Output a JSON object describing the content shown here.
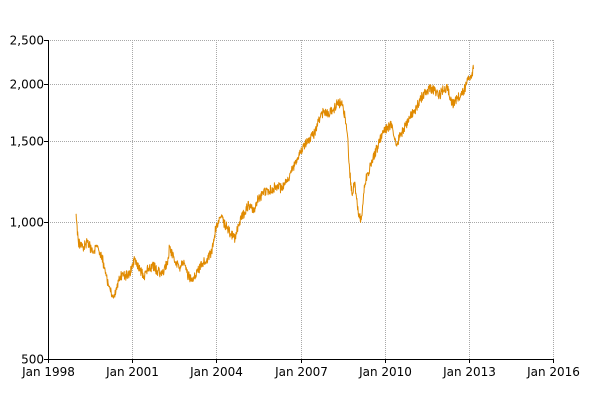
{
  "chart_data": {
    "type": "line",
    "title": "",
    "xlabel": "",
    "ylabel": "",
    "y_scale": "log",
    "ylim": [
      500,
      2500
    ],
    "xlim": [
      "1998-01",
      "2016-01"
    ],
    "grid": true,
    "legend": "none",
    "x_ticks": [
      {
        "date": "1998-01",
        "label": "Jan 1998"
      },
      {
        "date": "2001-01",
        "label": "Jan 2001"
      },
      {
        "date": "2004-01",
        "label": "Jan 2004"
      },
      {
        "date": "2007-01",
        "label": "Jan 2007"
      },
      {
        "date": "2010-01",
        "label": "Jan 2010"
      },
      {
        "date": "2013-01",
        "label": "Jan 2013"
      },
      {
        "date": "2016-01",
        "label": "Jan 2016"
      }
    ],
    "y_ticks": [
      {
        "value": 500,
        "label": "500"
      },
      {
        "value": 1000,
        "label": "1,000"
      },
      {
        "value": 1500,
        "label": "1,500"
      },
      {
        "value": 2000,
        "label": "2,000"
      },
      {
        "value": 2500,
        "label": "2,500"
      }
    ],
    "series": [
      {
        "name": "",
        "color": "#e08a00",
        "points": [
          [
            "1999-01",
            1040
          ],
          [
            "1999-02",
            900
          ],
          [
            "1999-04",
            880
          ],
          [
            "1999-06",
            900
          ],
          [
            "1999-08",
            860
          ],
          [
            "1999-10",
            880
          ],
          [
            "1999-12",
            840
          ],
          [
            "2000-02",
            760
          ],
          [
            "2000-03",
            720
          ],
          [
            "2000-05",
            680
          ],
          [
            "2000-06",
            700
          ],
          [
            "2000-08",
            760
          ],
          [
            "2000-10",
            760
          ],
          [
            "2000-12",
            770
          ],
          [
            "2001-02",
            830
          ],
          [
            "2001-04",
            790
          ],
          [
            "2001-06",
            760
          ],
          [
            "2001-08",
            790
          ],
          [
            "2001-10",
            800
          ],
          [
            "2001-12",
            780
          ],
          [
            "2002-02",
            770
          ],
          [
            "2002-04",
            810
          ],
          [
            "2002-05",
            880
          ],
          [
            "2002-07",
            820
          ],
          [
            "2002-09",
            790
          ],
          [
            "2002-11",
            810
          ],
          [
            "2003-01",
            760
          ],
          [
            "2003-03",
            740
          ],
          [
            "2003-05",
            780
          ],
          [
            "2003-07",
            810
          ],
          [
            "2003-09",
            830
          ],
          [
            "2003-11",
            860
          ],
          [
            "2004-01",
            980
          ],
          [
            "2004-03",
            1020
          ],
          [
            "2004-05",
            980
          ],
          [
            "2004-07",
            940
          ],
          [
            "2004-09",
            920
          ],
          [
            "2004-11",
            1000
          ],
          [
            "2005-01",
            1050
          ],
          [
            "2005-03",
            1090
          ],
          [
            "2005-05",
            1060
          ],
          [
            "2005-07",
            1120
          ],
          [
            "2005-09",
            1150
          ],
          [
            "2005-11",
            1170
          ],
          [
            "2006-01",
            1180
          ],
          [
            "2006-03",
            1200
          ],
          [
            "2006-05",
            1180
          ],
          [
            "2006-07",
            1220
          ],
          [
            "2006-09",
            1280
          ],
          [
            "2006-11",
            1350
          ],
          [
            "2007-01",
            1420
          ],
          [
            "2007-03",
            1470
          ],
          [
            "2007-05",
            1530
          ],
          [
            "2007-07",
            1560
          ],
          [
            "2007-09",
            1680
          ],
          [
            "2007-11",
            1740
          ],
          [
            "2008-01",
            1720
          ],
          [
            "2008-03",
            1760
          ],
          [
            "2008-05",
            1830
          ],
          [
            "2008-07",
            1800
          ],
          [
            "2008-08",
            1700
          ],
          [
            "2008-09",
            1560
          ],
          [
            "2008-10",
            1300
          ],
          [
            "2008-11",
            1150
          ],
          [
            "2008-12",
            1220
          ],
          [
            "2009-01",
            1120
          ],
          [
            "2009-02",
            1040
          ],
          [
            "2009-03",
            1010
          ],
          [
            "2009-04",
            1150
          ],
          [
            "2009-05",
            1240
          ],
          [
            "2009-06",
            1280
          ],
          [
            "2009-08",
            1380
          ],
          [
            "2009-10",
            1460
          ],
          [
            "2009-12",
            1560
          ],
          [
            "2010-02",
            1600
          ],
          [
            "2010-04",
            1640
          ],
          [
            "2010-06",
            1480
          ],
          [
            "2010-08",
            1560
          ],
          [
            "2010-10",
            1620
          ],
          [
            "2010-12",
            1700
          ],
          [
            "2011-02",
            1760
          ],
          [
            "2011-04",
            1840
          ],
          [
            "2011-06",
            1920
          ],
          [
            "2011-08",
            1960
          ],
          [
            "2011-10",
            1940
          ],
          [
            "2011-12",
            1880
          ],
          [
            "2012-02",
            1940
          ],
          [
            "2012-04",
            1960
          ],
          [
            "2012-06",
            1800
          ],
          [
            "2012-08",
            1860
          ],
          [
            "2012-10",
            1900
          ],
          [
            "2012-12",
            2000
          ],
          [
            "2013-02",
            2080
          ],
          [
            "2013-03",
            2160
          ]
        ]
      }
    ]
  }
}
